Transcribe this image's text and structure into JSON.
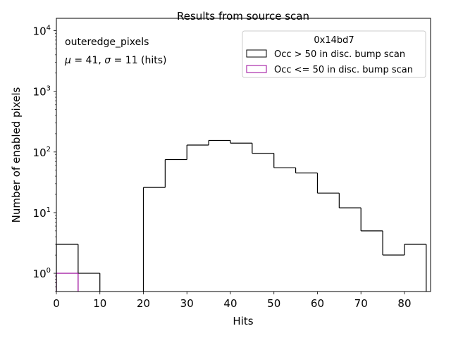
{
  "chart_data": {
    "type": "histogram",
    "title": "Results from source scan",
    "xlabel": "Hits",
    "ylabel": "Number of enabled pixels",
    "yscale": "log",
    "xlim": [
      0,
      86
    ],
    "ylim": [
      0.5,
      16000
    ],
    "x_ticks": [
      0,
      10,
      20,
      30,
      40,
      50,
      60,
      70,
      80
    ],
    "y_ticks": [
      {
        "value": 1,
        "base": "10",
        "exp": "0"
      },
      {
        "value": 10,
        "base": "10",
        "exp": "1"
      },
      {
        "value": 100,
        "base": "10",
        "exp": "2"
      },
      {
        "value": 1000,
        "base": "10",
        "exp": "3"
      },
      {
        "value": 10000,
        "base": "10",
        "exp": "4"
      }
    ],
    "annotations": {
      "name": "outeredge_pixels",
      "mu_symbol": "μ",
      "mu_text": " = 41, ",
      "sigma_symbol": "σ",
      "sigma_text": " = 11 (hits)"
    },
    "legend": {
      "title": "0x14bd7",
      "placement": "top-right"
    },
    "series": [
      {
        "name": "Occ > 50 in disc. bump scan",
        "color": "#000000",
        "bin_width": 5,
        "bin_starts": [
          0,
          5,
          10,
          15,
          20,
          25,
          30,
          35,
          40,
          45,
          50,
          55,
          60,
          65,
          70,
          75,
          80
        ],
        "values": [
          3,
          1,
          0,
          0,
          26,
          75,
          130,
          155,
          140,
          95,
          55,
          45,
          21,
          12,
          5,
          2,
          3
        ]
      },
      {
        "name": "Occ <= 50 in disc. bump scan",
        "color": "#990099",
        "bin_width": 5,
        "bin_starts": [
          0
        ],
        "values": [
          1
        ]
      }
    ]
  }
}
